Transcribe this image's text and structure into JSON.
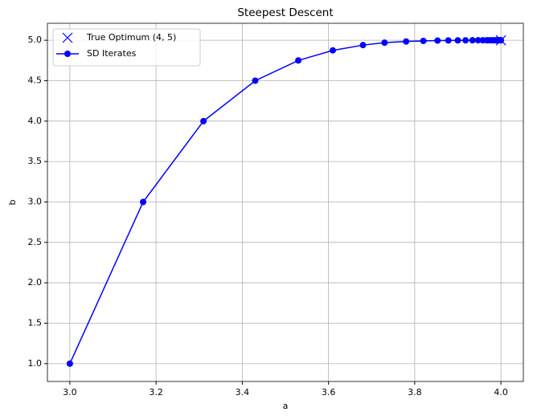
{
  "chart_data": {
    "type": "line",
    "title": "Steepest Descent",
    "x_label": "a",
    "y_label": "b",
    "xlim": [
      2.948,
      4.052
    ],
    "ylim": [
      0.78,
      5.21
    ],
    "xticks": [
      {
        "value": 3.0,
        "label": "3.0"
      },
      3.2,
      3.4,
      3.6,
      3.8,
      {
        "value": 4.0,
        "label": "4.0"
      }
    ],
    "yticks": [
      {
        "value": 1.0,
        "label": "1.0"
      },
      1.5,
      {
        "value": 2.0,
        "label": "2.0"
      },
      2.5,
      {
        "value": 3.0,
        "label": "3.0"
      },
      3.5,
      {
        "value": 4.0,
        "label": "4.0"
      },
      4.5,
      {
        "value": 5.0,
        "label": "5.0"
      }
    ],
    "grid": true,
    "legend": "upper left",
    "series": [
      {
        "name": "True Optimum (4, 5)",
        "color": "#0000ff",
        "marker": "x",
        "x": [
          4
        ],
        "values": [
          5
        ]
      },
      {
        "name": "SD Iterates",
        "color": "#0000ff",
        "marker": "o",
        "x": [
          3.0,
          3.17,
          3.31,
          3.43,
          3.53,
          3.61,
          3.68,
          3.73,
          3.78,
          3.82,
          3.853,
          3.878,
          3.9,
          3.918,
          3.934,
          3.947,
          3.958,
          3.967,
          3.974,
          3.98,
          3.985,
          3.99,
          3.993,
          3.996,
          3.998,
          4.0
        ],
        "values": [
          1.0,
          3.0,
          4.0,
          4.5,
          4.75,
          4.875,
          4.94,
          4.97,
          4.985,
          4.992,
          4.996,
          4.998,
          4.999,
          4.9995,
          4.9997,
          4.9998,
          4.9999,
          5.0,
          5.0,
          5.0,
          5.0,
          5.0,
          5.0,
          5.0,
          5.0,
          5.0
        ]
      }
    ]
  }
}
